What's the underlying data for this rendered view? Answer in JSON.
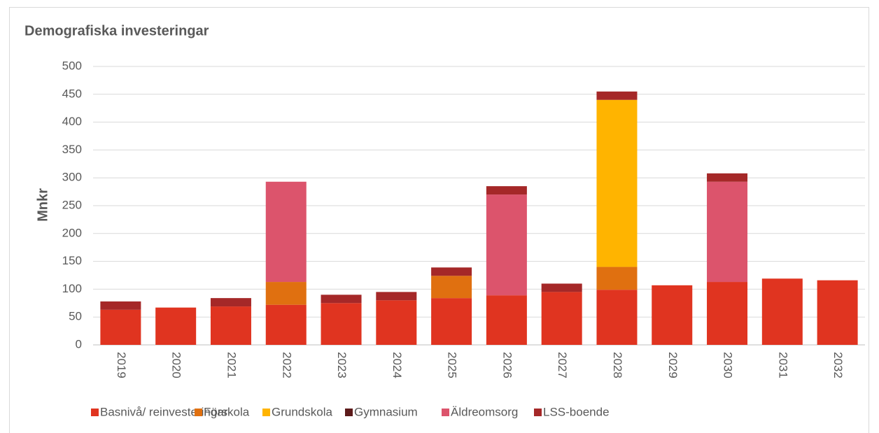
{
  "chart_data": {
    "type": "stacked_bar",
    "title": "Demografiska investeringar",
    "y_label": "Mnkr",
    "categories": [
      "2019",
      "2020",
      "2021",
      "2022",
      "2023",
      "2024",
      "2025",
      "2026",
      "2027",
      "2028",
      "2029",
      "2030",
      "2031",
      "2032"
    ],
    "series": [
      {
        "name": "Basnivå/ reinvesteringar",
        "color": "#e03420",
        "values": [
          63,
          67,
          69,
          72,
          75,
          80,
          84,
          89,
          95,
          99,
          107,
          113,
          119,
          116
        ]
      },
      {
        "name": "Förskola",
        "color": "#e07010",
        "values": [
          0,
          0,
          0,
          41,
          0,
          0,
          40,
          0,
          0,
          41,
          0,
          0,
          0,
          0
        ]
      },
      {
        "name": "Grundskola",
        "color": "#ffb400",
        "values": [
          0,
          0,
          0,
          0,
          0,
          0,
          0,
          0,
          0,
          300,
          0,
          0,
          0,
          0
        ]
      },
      {
        "name": "Gymnasium",
        "color": "#5c1a1a",
        "values": [
          0,
          0,
          0,
          0,
          0,
          0,
          0,
          0,
          0,
          0,
          0,
          0,
          0,
          0
        ]
      },
      {
        "name": "Äldreomsorg",
        "color": "#dc546c",
        "values": [
          0,
          0,
          0,
          180,
          0,
          0,
          0,
          181,
          0,
          0,
          0,
          180,
          0,
          0
        ]
      },
      {
        "name": "LSS-boende",
        "color": "#a52828",
        "values": [
          15,
          0,
          15,
          0,
          15,
          15,
          15,
          15,
          15,
          15,
          0,
          15,
          0,
          0
        ]
      }
    ],
    "ylim": [
      0,
      500
    ],
    "yticks": [
      0,
      50,
      100,
      150,
      200,
      250,
      300,
      350,
      400,
      450,
      500
    ],
    "grid": true
  }
}
